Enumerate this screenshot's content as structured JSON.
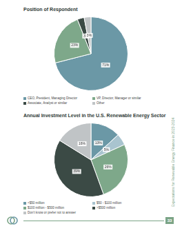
{
  "chart_data": [
    {
      "type": "pie",
      "title": "Position of Respondent",
      "categories": [
        "CEO, President, Managing Director",
        "VP, Director, Manager or similar",
        "Associate, Analyst or similar",
        "Other"
      ],
      "values": [
        71,
        23,
        3,
        3
      ],
      "value_labels": [
        "71%",
        "23%",
        "3%",
        "3%"
      ],
      "colors": [
        "#6b98a6",
        "#7ea88a",
        "#3b4a45",
        "#c0c4c6"
      ],
      "data_labels": true
    },
    {
      "type": "pie",
      "title": "Annual Investment Level in the U.S. Renewable Energy Sector",
      "categories": [
        "<$50 million",
        "$50 - $100 million",
        "$100 million - $500 million",
        ">$500 million",
        "Don't know or prefer not to answer"
      ],
      "values": [
        13,
        5,
        26,
        39,
        16
      ],
      "value_labels": [
        "13%",
        "5%",
        "26%",
        "39%",
        "16%"
      ],
      "colors": [
        "#6b98a6",
        "#a9c4cf",
        "#7ea88a",
        "#3b4a45",
        "#c0c4c6"
      ],
      "data_labels": true
    }
  ],
  "page": {
    "side_text": "Expectations for Renewable Energy Finance in 2023-2024",
    "page_number": "33"
  }
}
